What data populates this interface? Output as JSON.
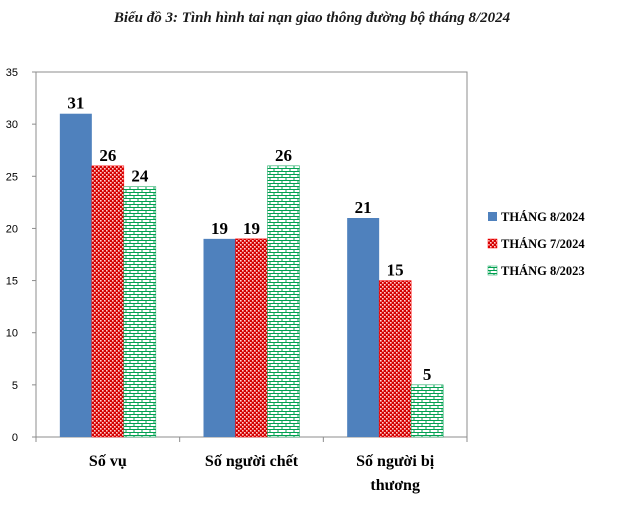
{
  "chart_data": {
    "type": "bar",
    "title": "Biểu đồ 3: Tình hình tai nạn giao thông đường bộ tháng 8/2024",
    "categories": [
      "Số vụ",
      "Số người chết",
      "Số người bị\nthương"
    ],
    "series": [
      {
        "name": "THÁNG 8/2024",
        "values": [
          31,
          19,
          21
        ],
        "color": "#4f81bd",
        "pattern": "solid"
      },
      {
        "name": "THÁNG 7/2024",
        "values": [
          26,
          19,
          15
        ],
        "color": "#ff0000",
        "pattern": "dots"
      },
      {
        "name": "THÁNG 8/2023",
        "values": [
          24,
          26,
          5
        ],
        "color": "#00a050",
        "pattern": "brick"
      }
    ],
    "ylim": [
      0,
      35
    ],
    "yticks": [
      0,
      5,
      10,
      15,
      20,
      25,
      30,
      35
    ],
    "grid": false,
    "legend_position": "right"
  }
}
